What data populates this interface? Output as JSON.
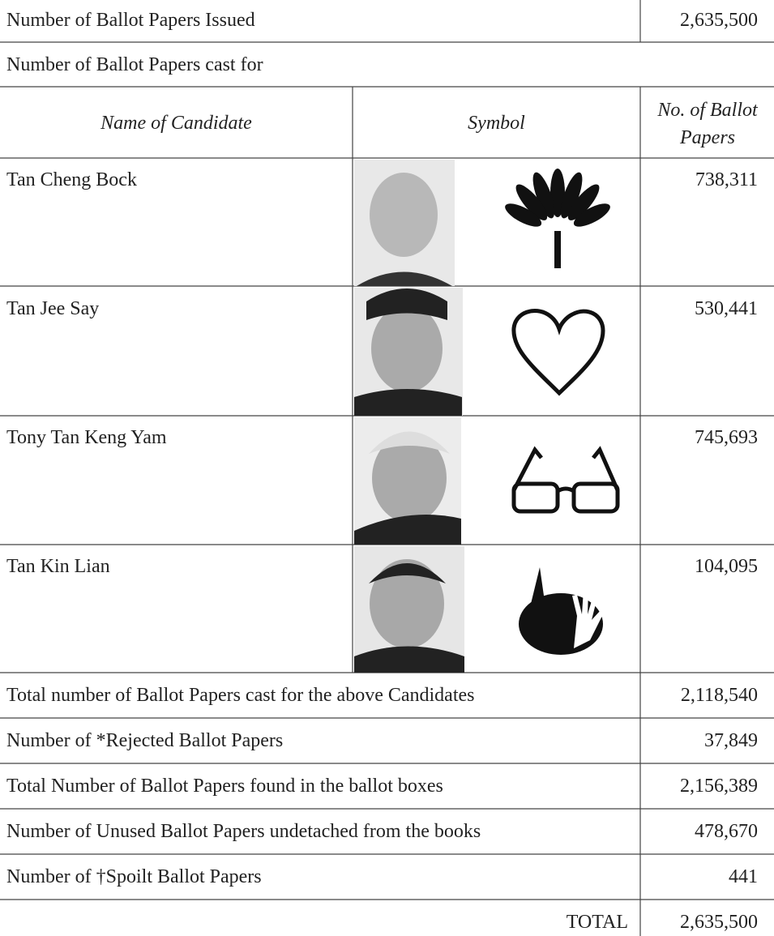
{
  "issued": {
    "label": "Number of Ballot Papers Issued",
    "value": "2,635,500"
  },
  "cast_for_label": "Number of Ballot Papers cast for",
  "table": {
    "headers": [
      "Name of Candidate",
      "Symbol",
      "No. of Ballot Papers"
    ],
    "rows": [
      [
        "Tan Cheng Bock",
        "738,311"
      ],
      [
        "Tan Jee Say",
        "530,441"
      ],
      [
        "Tony Tan Keng Yam",
        "745,693"
      ],
      [
        "Tan Kin Lian",
        "104,095"
      ]
    ]
  },
  "summary": [
    {
      "label": "Total number of Ballot Papers cast for the above Candidates",
      "value": "2,118,540"
    },
    {
      "label": "Number of *Rejected Ballot Papers",
      "value": "37,849"
    },
    {
      "label": "Total Number of Ballot Papers found in the ballot boxes",
      "value": "2,156,389"
    },
    {
      "label": "Number of Unused Ballot Papers undetached from the books",
      "value": "478,670"
    },
    {
      "label": "Number of †Spoilt Ballot Papers",
      "value": "441"
    }
  ],
  "total": {
    "label": "TOTAL",
    "value": "2,635,500"
  }
}
